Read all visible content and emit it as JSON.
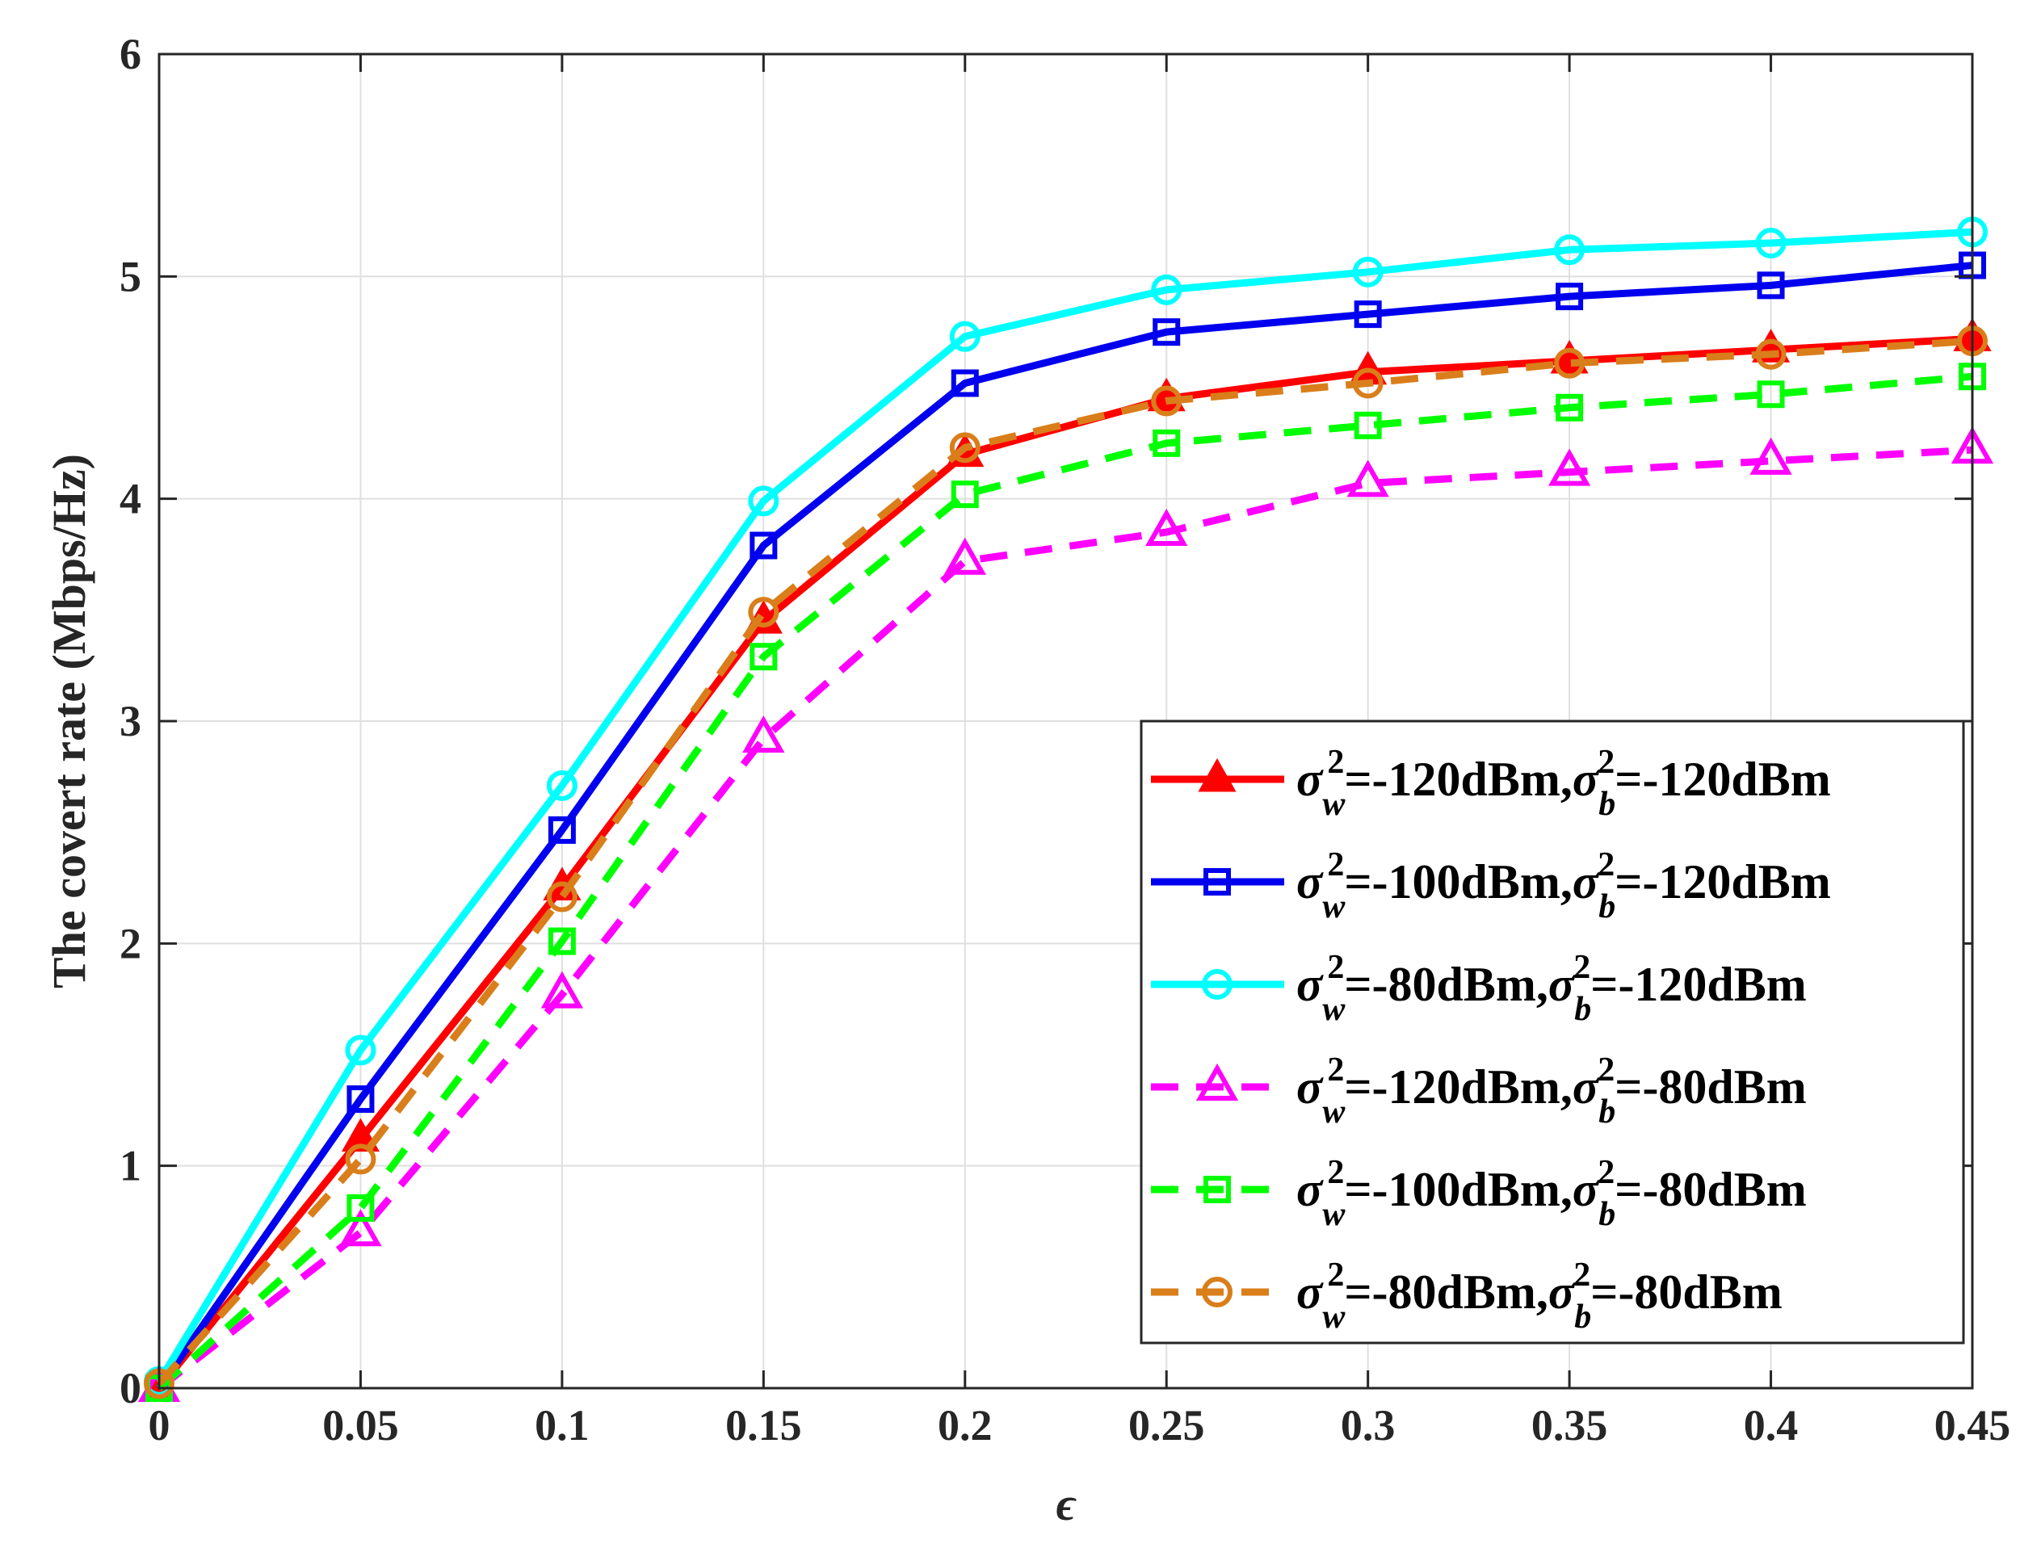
{
  "chart_data": {
    "type": "line",
    "title": "",
    "xlabel": "ϵ",
    "ylabel": "The covert rate (Mbps/Hz)",
    "xlim": [
      0,
      0.45
    ],
    "ylim": [
      0,
      6
    ],
    "grid": true,
    "x": [
      0,
      0.05,
      0.1,
      0.15,
      0.2,
      0.25,
      0.3,
      0.35,
      0.4,
      0.45
    ],
    "xticks": [
      "0",
      "0.05",
      "0.1",
      "0.15",
      "0.2",
      "0.25",
      "0.3",
      "0.35",
      "0.4",
      "0.45"
    ],
    "yticks": [
      "0",
      "1",
      "2",
      "3",
      "4",
      "5",
      "6"
    ],
    "legend_position": "center-right",
    "series": [
      {
        "name": "σw2=-120dBm,σb2=-120dBm",
        "sigma_w": "-120dBm",
        "sigma_b": "-120dBm",
        "color": "#ff0000",
        "dash": "solid",
        "marker": "triangle",
        "values": [
          0,
          1.12,
          2.25,
          3.45,
          4.2,
          4.45,
          4.57,
          4.62,
          4.67,
          4.72
        ]
      },
      {
        "name": "σw2=-100dBm,σb2=-120dBm",
        "sigma_w": "-100dBm",
        "sigma_b": "-120dBm",
        "color": "#0000ee",
        "dash": "solid",
        "marker": "square",
        "values": [
          0,
          1.3,
          2.51,
          3.79,
          4.52,
          4.75,
          4.83,
          4.91,
          4.96,
          5.05
        ]
      },
      {
        "name": "σw2=-80dBm,σb2=-120dBm",
        "sigma_w": "-80dBm",
        "sigma_b": "-120dBm",
        "color": "#00ffff",
        "dash": "solid",
        "marker": "circle",
        "values": [
          0.03,
          1.52,
          2.71,
          3.99,
          4.73,
          4.94,
          5.02,
          5.12,
          5.15,
          5.2
        ]
      },
      {
        "name": "σw2=-120dBm,σb2=-80dBm",
        "sigma_w": "-120dBm",
        "sigma_b": "-80dBm",
        "color": "#ff00ff",
        "dash": "dashed",
        "marker": "triangle",
        "values": [
          0,
          0.7,
          1.77,
          2.92,
          3.72,
          3.85,
          4.07,
          4.12,
          4.17,
          4.22
        ]
      },
      {
        "name": "σw2=-100dBm,σb2=-80dBm",
        "sigma_w": "-100dBm",
        "sigma_b": "-80dBm",
        "color": "#00ff00",
        "dash": "dashed",
        "marker": "square",
        "values": [
          0,
          0.81,
          2.01,
          3.29,
          4.02,
          4.25,
          4.33,
          4.41,
          4.47,
          4.55
        ]
      },
      {
        "name": "σw2=-80dBm,σb2=-80dBm",
        "sigma_w": "-80dBm",
        "sigma_b": "-80dBm",
        "color": "#d97e1a",
        "dash": "dashed",
        "marker": "circle",
        "values": [
          0.02,
          1.03,
          2.21,
          3.49,
          4.23,
          4.44,
          4.52,
          4.61,
          4.65,
          4.71
        ]
      }
    ]
  }
}
